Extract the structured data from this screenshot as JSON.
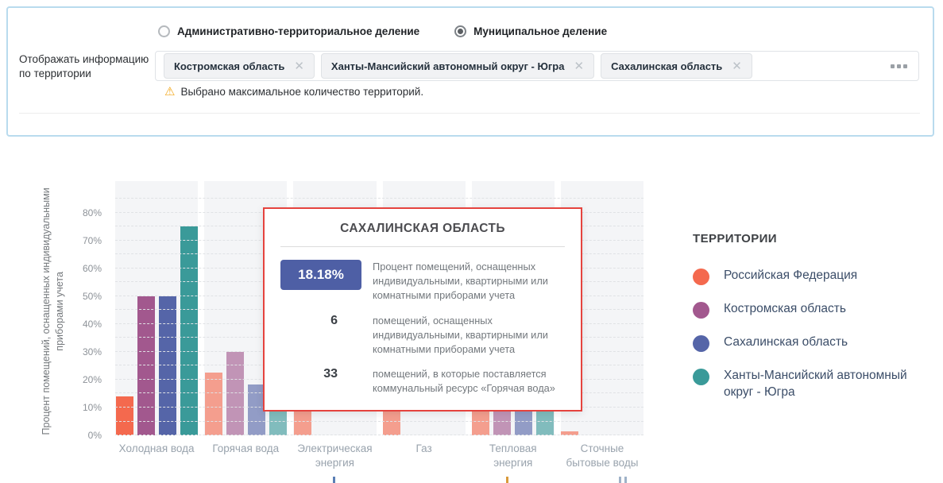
{
  "filters": {
    "territory_label": "Отображать информацию по территории",
    "radio_options": [
      {
        "label": "Административно-территориальное деление",
        "selected": false
      },
      {
        "label": "Муниципальное деление",
        "selected": true
      }
    ],
    "tags": [
      "Костромская область",
      "Ханты-Мансийский автономный округ - Югра",
      "Сахалинская область"
    ],
    "warning": "Выбрано максимальное количество территорий.",
    "icons": {
      "warning": "warning-triangle-icon",
      "tag_close": "close-icon",
      "more": "ellipsis-icon"
    }
  },
  "chart_data": {
    "type": "bar",
    "title": "",
    "ylabel": "Процент помещений, оснащенных индивидуальными приборами учета",
    "ylim": [
      0,
      91.4
    ],
    "yticks": [
      "0%",
      "10%",
      "20%",
      "30%",
      "40%",
      "50%",
      "60%",
      "70%",
      "80%"
    ],
    "ytick_values": [
      0,
      10,
      20,
      30,
      40,
      50,
      60,
      70,
      80
    ],
    "grid": "dashed horizontal every 5%",
    "legend_position": "right",
    "categories": [
      "Холодная вода",
      "Горячая вода",
      "Электрическая энергия",
      "Газ",
      "Тепловая энергия",
      "Сточные бытовые воды"
    ],
    "series": [
      {
        "name": "Российская Федерация",
        "color": "#f4694e",
        "values": [
          14,
          22.5,
          15,
          13,
          20.5,
          1.5
        ]
      },
      {
        "name": "Костромская область",
        "color": "#a2588e",
        "values": [
          50,
          30,
          null,
          null,
          19.5,
          null
        ]
      },
      {
        "name": "Сахалинская область",
        "color": "#5565a8",
        "values": [
          50,
          18.18,
          null,
          null,
          19,
          null
        ]
      },
      {
        "name": "Ханты-Мансийский автономный округ - Югра",
        "color": "#3a9a99",
        "values": [
          75,
          23,
          null,
          null,
          21,
          null
        ]
      }
    ],
    "highlighted_category": "Холодная вода",
    "dimmed_opacity": 0.62
  },
  "tooltip": {
    "title": "САХАЛИНСКАЯ ОБЛАСТЬ",
    "accent_color": "#e5433e",
    "badge_color": "#4e5fa5",
    "rows": [
      {
        "value": "18.18%",
        "badge": true,
        "text": "Процент помещений, оснащенных индивидуальными, квартирными или комнатными приборами учета"
      },
      {
        "value": "6",
        "badge": false,
        "text": "помещений, оснащенных индивидуальными, квартирными или комнатными приборами учета"
      },
      {
        "value": "33",
        "badge": false,
        "text": "помещений, в которые поставляется коммунальный ресурс «Горячая вода»"
      }
    ]
  },
  "legend": {
    "title": "ТЕРРИТОРИИ",
    "items": [
      {
        "label": "Российская Федерация",
        "color": "#f4694e"
      },
      {
        "label": "Костромская область",
        "color": "#a2588e"
      },
      {
        "label": "Сахалинская область",
        "color": "#5565a8"
      },
      {
        "label": "Ханты-Мансийский автономный округ - Югра",
        "color": "#3a9a99"
      }
    ]
  }
}
